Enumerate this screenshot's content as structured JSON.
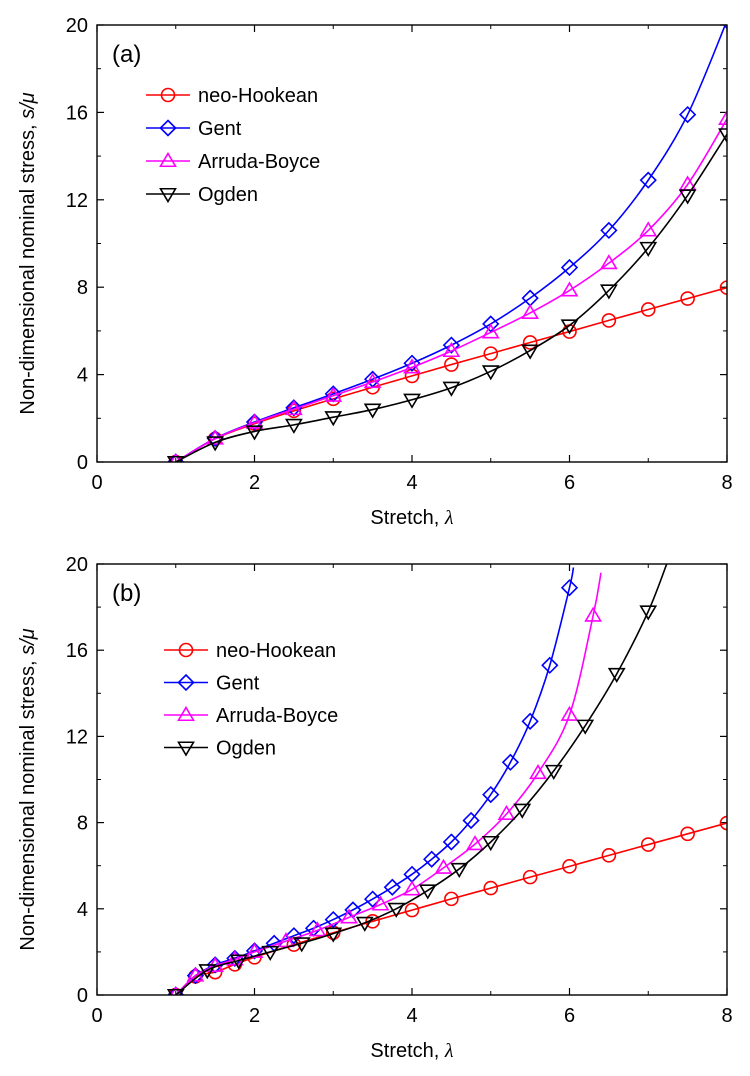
{
  "chart_data": [
    {
      "type": "line",
      "panel_label": "(a)",
      "xlabel_text": "Stretch, ",
      "xlabel_symbol": "λ",
      "ylabel_text": "Non-dimensional nominal stress, ",
      "ylabel_symbol": "s/μ",
      "xlim": [
        0,
        8
      ],
      "ylim": [
        0,
        20
      ],
      "xticks": [
        0,
        2,
        4,
        6,
        8
      ],
      "yticks": [
        0,
        4,
        8,
        12,
        16,
        20
      ],
      "grid": false,
      "legend_position": "top-left",
      "series": [
        {
          "name": "neo-Hookean",
          "color": "#ff0000",
          "marker": "circle",
          "x": [
            1,
            1.5,
            2,
            2.5,
            3,
            3.5,
            4,
            4.5,
            5,
            5.5,
            6,
            6.5,
            7,
            7.5,
            8
          ],
          "y": [
            0,
            1.06,
            1.75,
            2.34,
            2.89,
            3.42,
            3.94,
            4.46,
            4.96,
            5.47,
            5.97,
            6.48,
            6.98,
            7.48,
            7.98
          ]
        },
        {
          "name": "Gent",
          "color": "#0000ff",
          "marker": "diamond",
          "x": [
            1,
            1.5,
            2,
            2.5,
            3,
            3.5,
            4,
            4.5,
            5,
            5.5,
            6,
            6.5,
            7,
            7.5,
            8
          ],
          "y": [
            0,
            1.08,
            1.83,
            2.48,
            3.12,
            3.79,
            4.52,
            5.35,
            6.32,
            7.5,
            8.9,
            10.6,
            12.9,
            15.9,
            20.2
          ]
        },
        {
          "name": "Arruda-Boyce",
          "color": "#ff00ff",
          "marker": "triangle-up",
          "x": [
            1,
            1.5,
            2,
            2.5,
            3,
            3.5,
            4,
            4.5,
            5,
            5.5,
            6,
            6.5,
            7,
            7.5,
            8
          ],
          "y": [
            0,
            1.07,
            1.8,
            2.42,
            3.03,
            3.66,
            4.33,
            5.08,
            5.93,
            6.82,
            7.85,
            9.1,
            10.6,
            12.7,
            15.7
          ]
        },
        {
          "name": "Ogden",
          "color": "#000000",
          "marker": "triangle-down",
          "x": [
            1,
            1.5,
            2,
            2.5,
            3,
            3.5,
            4,
            4.5,
            5,
            5.5,
            6,
            6.5,
            7,
            7.5,
            8
          ],
          "y": [
            0,
            0.9,
            1.4,
            1.7,
            2.05,
            2.4,
            2.85,
            3.4,
            4.15,
            5.1,
            6.25,
            7.85,
            9.8,
            12.2,
            15.0
          ]
        }
      ]
    },
    {
      "type": "line",
      "panel_label": "(b)",
      "xlabel_text": "Stretch, ",
      "xlabel_symbol": "λ",
      "ylabel_text": "Non-dimensional nominal stress, ",
      "ylabel_symbol": "s/μ",
      "xlim": [
        0,
        8
      ],
      "ylim": [
        0,
        20
      ],
      "xticks": [
        0,
        2,
        4,
        6,
        8
      ],
      "yticks": [
        0,
        4,
        8,
        12,
        16,
        20
      ],
      "grid": false,
      "legend_position": "top-left",
      "series": [
        {
          "name": "neo-Hookean",
          "color": "#ff0000",
          "marker": "circle",
          "x": [
            1,
            1.25,
            1.5,
            1.75,
            2,
            2.5,
            3,
            3.5,
            4,
            4.5,
            5,
            5.5,
            6,
            6.5,
            7,
            7.5,
            8
          ],
          "y": [
            0,
            0.86,
            1.06,
            1.42,
            1.75,
            2.34,
            2.89,
            3.42,
            3.94,
            4.46,
            4.96,
            5.47,
            5.97,
            6.48,
            6.98,
            7.48,
            7.98
          ],
          "curve_end_x": 8
        },
        {
          "name": "Gent",
          "color": "#0000ff",
          "marker": "diamond",
          "x": [
            1,
            1.25,
            1.5,
            1.75,
            2,
            2.25,
            2.5,
            2.75,
            3,
            3.25,
            3.5,
            3.75,
            4,
            4.25,
            4.5,
            4.75,
            5,
            5.25,
            5.5,
            5.75,
            6
          ],
          "y": [
            0,
            0.9,
            1.4,
            1.7,
            2.05,
            2.4,
            2.75,
            3.1,
            3.5,
            3.95,
            4.45,
            5.0,
            5.6,
            6.3,
            7.1,
            8.1,
            9.3,
            10.8,
            12.7,
            15.3,
            18.9
          ],
          "curve_end_x": 6.05
        },
        {
          "name": "Arruda-Boyce",
          "color": "#ff00ff",
          "marker": "triangle-up",
          "x": [
            1,
            1.25,
            1.5,
            1.75,
            2,
            2.4,
            2.8,
            3.2,
            3.6,
            4.0,
            4.4,
            4.8,
            5.2,
            5.6,
            6.0,
            6.3
          ],
          "y": [
            0,
            0.9,
            1.35,
            1.65,
            2.0,
            2.5,
            3.0,
            3.6,
            4.2,
            4.9,
            5.9,
            7.0,
            8.4,
            10.3,
            13.0,
            17.6
          ],
          "curve_end_x": 6.4
        },
        {
          "name": "Ogden",
          "color": "#000000",
          "marker": "triangle-down",
          "x": [
            1,
            1.4,
            1.8,
            2.2,
            2.6,
            3.0,
            3.4,
            3.8,
            4.2,
            4.6,
            5.0,
            5.4,
            5.8,
            6.2,
            6.6,
            7.0
          ],
          "y": [
            0,
            1.15,
            1.6,
            2.0,
            2.4,
            2.85,
            3.35,
            4.0,
            4.85,
            5.85,
            7.1,
            8.6,
            10.4,
            12.5,
            14.9,
            17.8
          ],
          "curve_end_x": 7.25
        }
      ]
    }
  ]
}
